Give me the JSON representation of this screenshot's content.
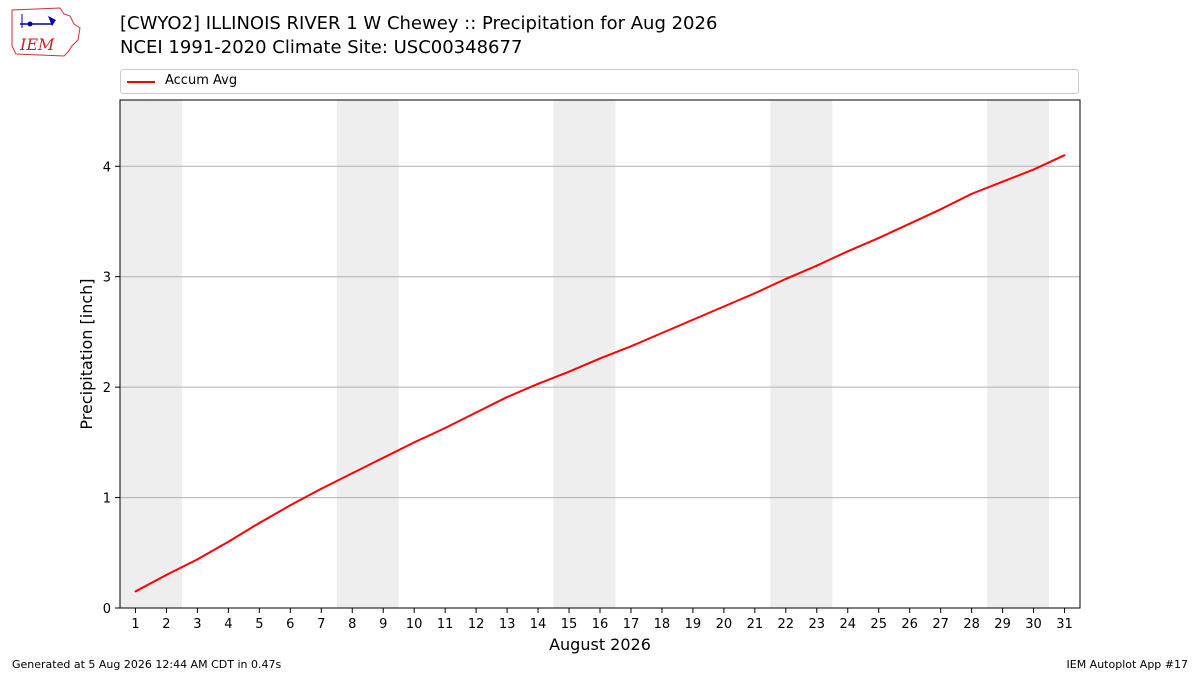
{
  "header": {
    "title_line1": "[CWYO2] ILLINOIS RIVER 1 W Chewey :: Precipitation for Aug 2026",
    "title_line2": "NCEI 1991-2020 Climate Site: USC00348677",
    "logo_text": "IEM"
  },
  "legend": {
    "label": "Accum Avg",
    "color": "#ff0000"
  },
  "footer": {
    "left": "Generated at 5 Aug 2026 12:44 AM CDT in 0.47s",
    "right": "IEM Autoplot App #17"
  },
  "colors": {
    "line": "#ff0000",
    "weekend_band": "#eeeeee",
    "grid": "#b0b0b0"
  },
  "chart_data": {
    "type": "line",
    "title": "[CWYO2] ILLINOIS RIVER 1 W Chewey :: Precipitation for Aug 2026",
    "xlabel": "August 2026",
    "ylabel": "Precipitation [inch]",
    "xlim": [
      0.5,
      31.5
    ],
    "ylim": [
      0,
      4.6
    ],
    "yticks": [
      0,
      1,
      2,
      3,
      4
    ],
    "x": [
      1,
      2,
      3,
      4,
      5,
      6,
      7,
      8,
      9,
      10,
      11,
      12,
      13,
      14,
      15,
      16,
      17,
      18,
      19,
      20,
      21,
      22,
      23,
      24,
      25,
      26,
      27,
      28,
      29,
      30,
      31
    ],
    "series": [
      {
        "name": "Accum Avg",
        "values": [
          0.15,
          0.3,
          0.44,
          0.6,
          0.77,
          0.93,
          1.08,
          1.22,
          1.36,
          1.5,
          1.63,
          1.77,
          1.91,
          2.03,
          2.14,
          2.26,
          2.37,
          2.49,
          2.61,
          2.73,
          2.85,
          2.98,
          3.1,
          3.23,
          3.35,
          3.48,
          3.61,
          3.75,
          3.86,
          3.97,
          4.1
        ]
      }
    ],
    "weekend_bands": [
      [
        1,
        2
      ],
      [
        8,
        9
      ],
      [
        15,
        16
      ],
      [
        22,
        23
      ],
      [
        29,
        30
      ]
    ],
    "grid": "horizontal",
    "legend_position": "top"
  }
}
